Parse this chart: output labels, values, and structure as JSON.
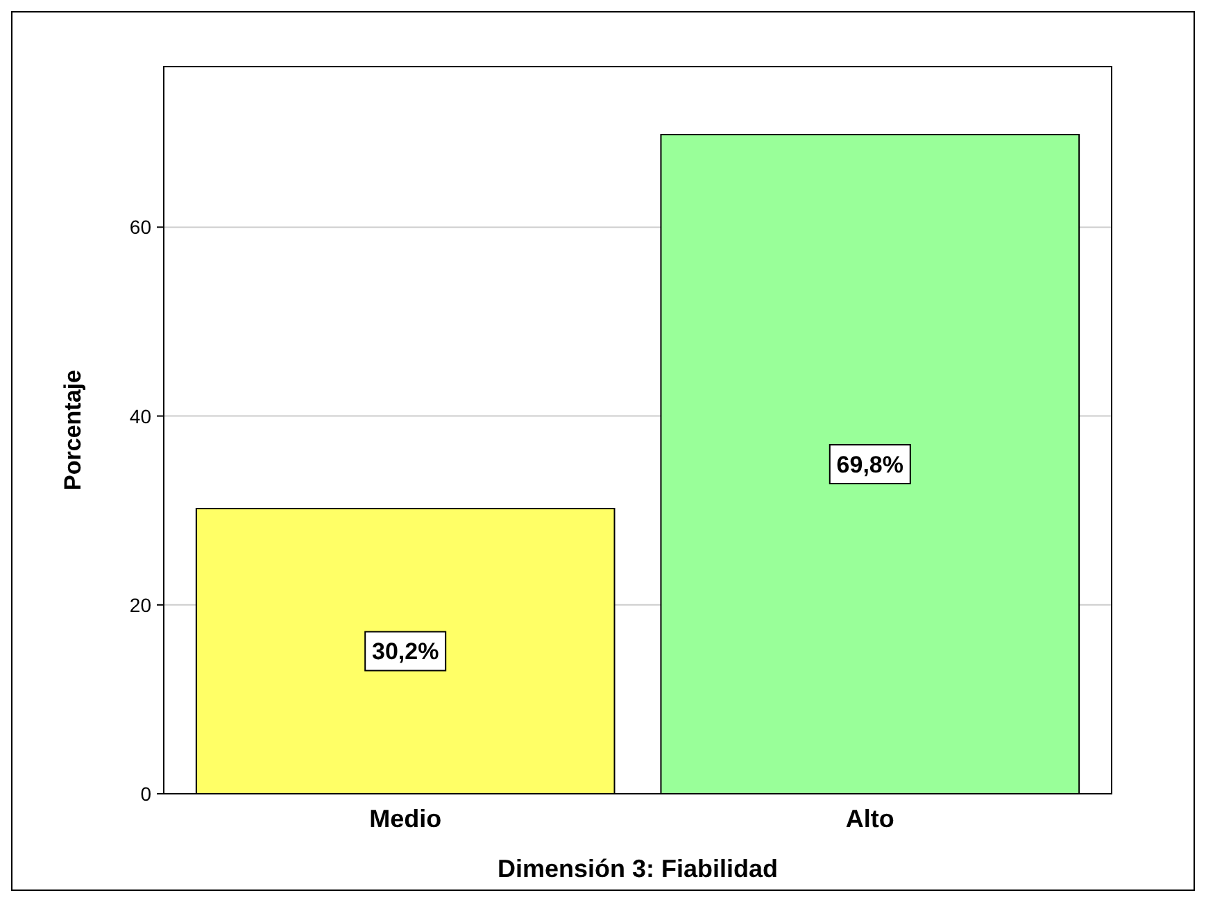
{
  "chart_data": {
    "type": "bar",
    "xlabel": "Dimensión 3: Fiabilidad",
    "ylabel": "Porcentaje",
    "categories": [
      "Medio",
      "Alto"
    ],
    "values": [
      30.2,
      69.8
    ],
    "colors": [
      "#ffff66",
      "#99ff99"
    ],
    "value_labels": [
      "30,2%",
      "69,8%"
    ],
    "ylim": [
      0,
      77
    ],
    "yticks": [
      0,
      20,
      40,
      60
    ],
    "grid": "y"
  }
}
